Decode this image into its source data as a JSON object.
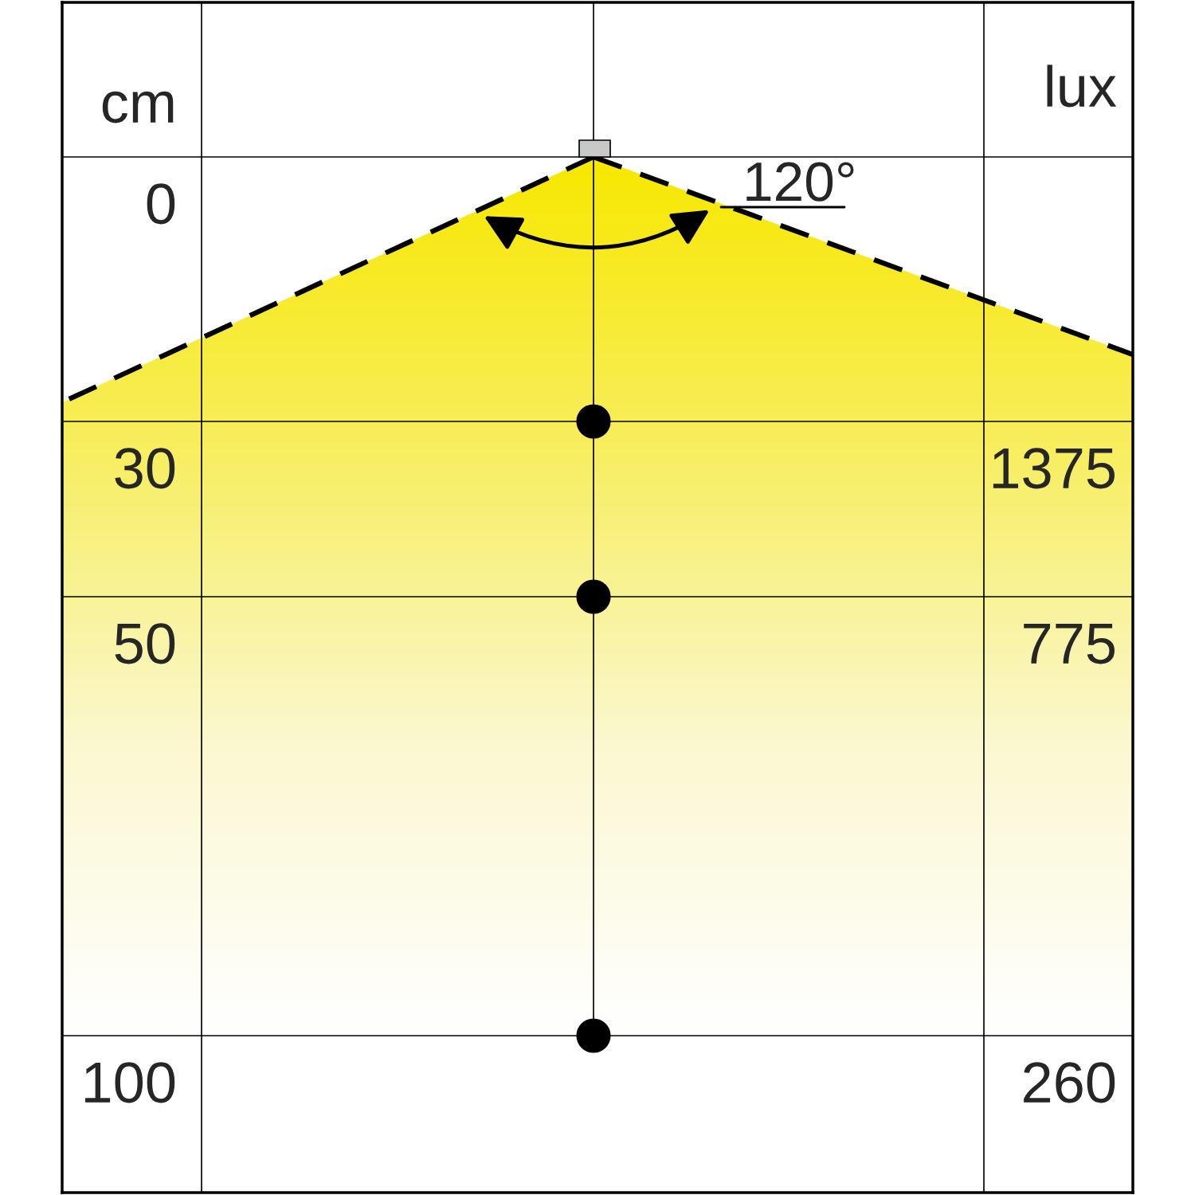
{
  "chart_data": {
    "type": "other",
    "ylabel": "cm",
    "y2label": "lux",
    "annotations": [
      "120°"
    ],
    "categories": [
      "0",
      "30",
      "50",
      "100"
    ],
    "values": [
      null,
      1375,
      775,
      260
    ],
    "color": "#000000",
    "data_labels": true
  }
}
